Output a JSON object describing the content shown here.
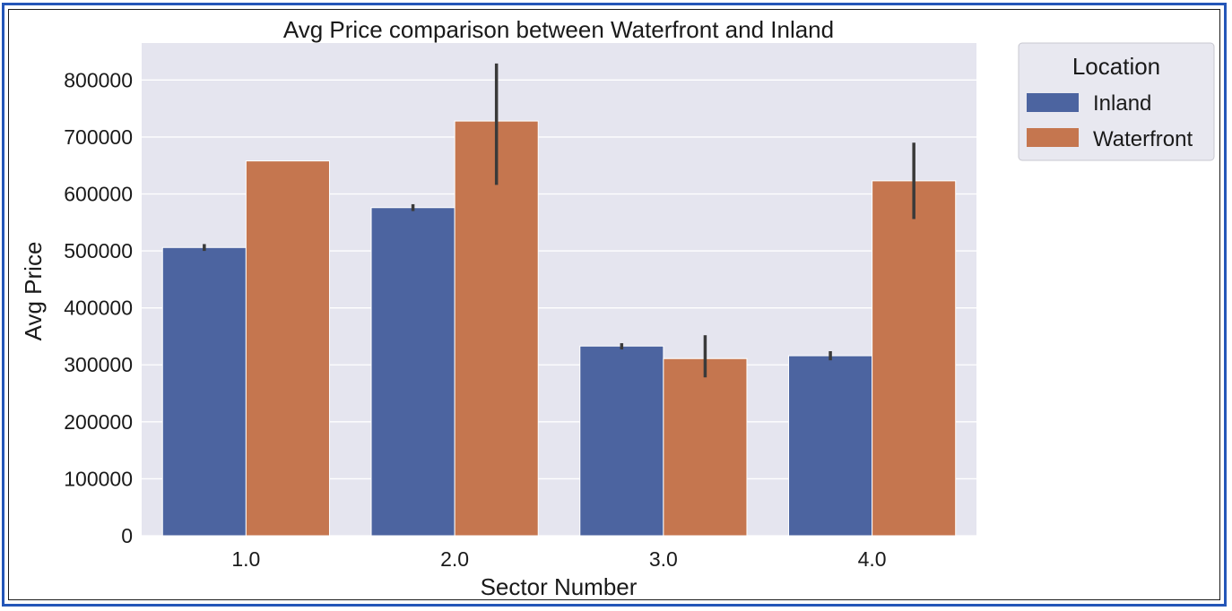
{
  "chart_data": {
    "type": "bar",
    "title": "Avg Price comparison between Waterfront and Inland",
    "xlabel": "Sector Number",
    "ylabel": "Avg Price",
    "categories": [
      "1.0",
      "2.0",
      "3.0",
      "4.0"
    ],
    "ylim": [
      0,
      865000
    ],
    "yticks": [
      0,
      100000,
      200000,
      300000,
      400000,
      500000,
      600000,
      700000,
      800000
    ],
    "ytick_labels": [
      "0",
      "100000",
      "200000",
      "300000",
      "400000",
      "500000",
      "600000",
      "700000",
      "800000"
    ],
    "grid": true,
    "legend": {
      "title": "Location",
      "position": "outside-top-right"
    },
    "series": [
      {
        "name": "Inland",
        "color": "#4c64a0",
        "values": [
          506000,
          576000,
          333000,
          316000
        ],
        "error_low": [
          500000,
          570000,
          327000,
          308000
        ],
        "error_high": [
          512000,
          582000,
          338000,
          324000
        ]
      },
      {
        "name": "Waterfront",
        "color": "#c5764f",
        "values": [
          658000,
          728000,
          311000,
          623000
        ],
        "error_low": [
          658000,
          616000,
          278000,
          556000
        ],
        "error_high": [
          658000,
          829000,
          352000,
          690000
        ]
      }
    ]
  }
}
